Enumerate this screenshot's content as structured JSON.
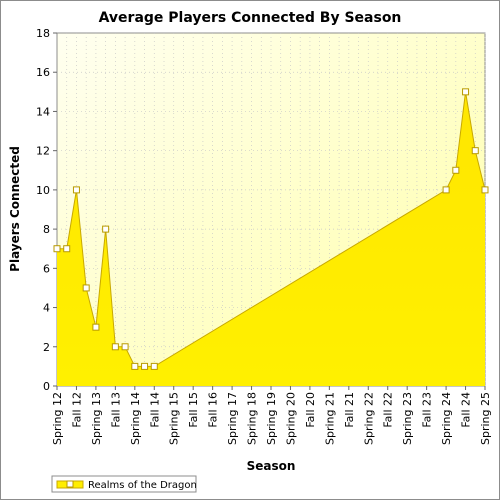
{
  "chart_data": {
    "type": "area",
    "title": "Average Players Connected By Season",
    "xlabel": "Season",
    "ylabel": "Players Connected",
    "ylim": [
      0,
      18
    ],
    "yticks": [
      0,
      2,
      4,
      6,
      8,
      10,
      12,
      14,
      16,
      18
    ],
    "categories": [
      "Spring 12",
      "Fall 12",
      "Spring 13",
      "Fall 13",
      "Spring 14",
      "Fall 14",
      "Spring 15",
      "Fall 15",
      "Fall 16",
      "Spring 17",
      "Spring 18",
      "Spring 19",
      "Spring 20",
      "Fall 20",
      "Spring 21",
      "Fall 21",
      "Spring 22",
      "Fall 22",
      "Spring 23",
      "Fall 23",
      "Spring 24",
      "Fall 24",
      "Spring 25"
    ],
    "series": [
      {
        "name": "Realms of the Dragon",
        "color": "#ffee00",
        "points": [
          {
            "x": 0.0,
            "y": 7
          },
          {
            "x": 0.5,
            "y": 7
          },
          {
            "x": 1.0,
            "y": 10
          },
          {
            "x": 1.5,
            "y": 5
          },
          {
            "x": 2.0,
            "y": 3
          },
          {
            "x": 2.5,
            "y": 8
          },
          {
            "x": 3.0,
            "y": 2
          },
          {
            "x": 3.5,
            "y": 2
          },
          {
            "x": 4.0,
            "y": 1
          },
          {
            "x": 4.5,
            "y": 1
          },
          {
            "x": 5.0,
            "y": 1
          },
          {
            "x": 20.0,
            "y": 10
          },
          {
            "x": 20.5,
            "y": 11
          },
          {
            "x": 21.0,
            "y": 15
          },
          {
            "x": 21.5,
            "y": 12
          },
          {
            "x": 22.0,
            "y": 10
          }
        ]
      }
    ],
    "grid": true,
    "legend": "bottom-left"
  }
}
